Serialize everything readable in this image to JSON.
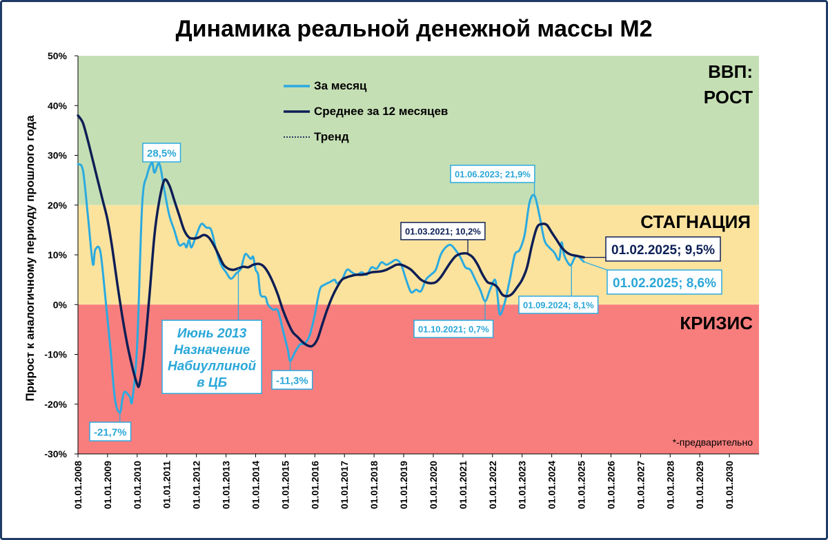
{
  "colors": {
    "zone_growth": "#c5dfb4",
    "zone_stagnation": "#fbe39e",
    "zone_crisis": "#f87e7e",
    "monthly": "#2aaae0",
    "avg12": "#0e1e55",
    "trend": "#0e1e55"
  },
  "chart_data": {
    "type": "line",
    "title": "Динамика реальной денежной массы М2",
    "ylabel": "Прирост к аналогичному периоду прошлого года",
    "ylim": [
      -30,
      50
    ],
    "xlim": [
      "2008-01-01",
      "2030-12-31"
    ],
    "yticks": [
      {
        "value": 50,
        "label": "50%"
      },
      {
        "value": 40,
        "label": "40%"
      },
      {
        "value": 30,
        "label": "30%"
      },
      {
        "value": 20,
        "label": "20%"
      },
      {
        "value": 10,
        "label": "10%"
      },
      {
        "value": 0,
        "label": "0%"
      },
      {
        "value": -10,
        "label": "-10%"
      },
      {
        "value": -20,
        "label": "-20%"
      },
      {
        "value": -30,
        "label": "-30%"
      }
    ],
    "xticks": [
      "01.01.2008",
      "01.01.2009",
      "01.01.2010",
      "01.01.2011",
      "01.01.2012",
      "01.01.2013",
      "01.01.2014",
      "01.01.2015",
      "01.01.2016",
      "01.01.2017",
      "01.01.2018",
      "01.01.2019",
      "01.01.2020",
      "01.01.2021",
      "01.01.2022",
      "01.01.2023",
      "01.01.2024",
      "01.01.2025",
      "01.01.2026",
      "01.01.2027",
      "01.01.2028",
      "01.01.2029",
      "01.01.2030"
    ],
    "zones": [
      {
        "label_lines": [
          "ВВП:",
          "РОСТ"
        ],
        "from": 20,
        "to": 50
      },
      {
        "label_lines": [
          "СТАГНАЦИЯ"
        ],
        "from": 0,
        "to": 20
      },
      {
        "label_lines": [
          "КРИЗИС"
        ],
        "from": -30,
        "to": 0
      }
    ],
    "legend": {
      "position": "top-center",
      "entries": [
        "За месяц",
        "Среднее за 12 месяцев",
        "Тренд"
      ]
    },
    "series": [
      {
        "name": "За месяц",
        "points": [
          [
            "2008-01",
            28.2
          ],
          [
            "2008-03",
            27
          ],
          [
            "2008-05",
            18
          ],
          [
            "2008-07",
            8.2
          ],
          [
            "2008-08",
            11
          ],
          [
            "2008-10",
            10.8
          ],
          [
            "2008-12",
            2
          ],
          [
            "2009-02",
            -8
          ],
          [
            "2009-04",
            -19
          ],
          [
            "2009-06",
            -21.7
          ],
          [
            "2009-07",
            -19
          ],
          [
            "2009-08",
            -17.5
          ],
          [
            "2009-10",
            -18.5
          ],
          [
            "2009-11",
            -19.2
          ],
          [
            "2010-01",
            -8
          ],
          [
            "2010-03",
            20
          ],
          [
            "2010-05",
            26
          ],
          [
            "2010-07",
            28.5
          ],
          [
            "2010-08",
            26.5
          ],
          [
            "2010-10",
            28.3
          ],
          [
            "2010-12",
            23
          ],
          [
            "2011-02",
            18
          ],
          [
            "2011-04",
            15
          ],
          [
            "2011-06",
            12
          ],
          [
            "2011-08",
            12.3
          ],
          [
            "2011-09",
            11.5
          ],
          [
            "2011-10",
            13
          ],
          [
            "2011-11",
            11.5
          ],
          [
            "2012-01",
            14
          ],
          [
            "2012-03",
            16.2
          ],
          [
            "2012-05",
            15.5
          ],
          [
            "2012-07",
            15
          ],
          [
            "2012-09",
            11
          ],
          [
            "2012-11",
            8
          ],
          [
            "2013-01",
            6.5
          ],
          [
            "2013-03",
            5.2
          ],
          [
            "2013-05",
            6.2
          ],
          [
            "2013-07",
            7.2
          ],
          [
            "2013-08",
            9
          ],
          [
            "2013-09",
            10.2
          ],
          [
            "2013-11",
            9.2
          ],
          [
            "2013-12",
            9.6
          ],
          [
            "2014-01",
            7
          ],
          [
            "2014-02",
            6
          ],
          [
            "2014-03",
            2
          ],
          [
            "2014-05",
            1.5
          ],
          [
            "2014-06",
            0
          ],
          [
            "2014-08",
            -1
          ],
          [
            "2014-10",
            -1.2
          ],
          [
            "2014-12",
            -5
          ],
          [
            "2015-02",
            -9
          ],
          [
            "2015-03",
            -11.3
          ],
          [
            "2015-05",
            -9.5
          ],
          [
            "2015-07",
            -8
          ],
          [
            "2015-09",
            -7.8
          ],
          [
            "2015-11",
            -6
          ],
          [
            "2016-01",
            -2
          ],
          [
            "2016-03",
            3
          ],
          [
            "2016-05",
            4
          ],
          [
            "2016-07",
            4.5
          ],
          [
            "2016-09",
            5
          ],
          [
            "2016-10",
            4.3
          ],
          [
            "2016-12",
            5
          ],
          [
            "2017-02",
            7
          ],
          [
            "2017-04",
            6.5
          ],
          [
            "2017-06",
            6
          ],
          [
            "2017-08",
            6.5
          ],
          [
            "2017-10",
            6
          ],
          [
            "2017-12",
            7.5
          ],
          [
            "2018-02",
            7.2
          ],
          [
            "2018-04",
            8.5
          ],
          [
            "2018-06",
            8
          ],
          [
            "2018-08",
            8.5
          ],
          [
            "2018-10",
            9
          ],
          [
            "2018-12",
            8
          ],
          [
            "2019-02",
            5
          ],
          [
            "2019-04",
            2.5
          ],
          [
            "2019-06",
            3
          ],
          [
            "2019-08",
            2.7
          ],
          [
            "2019-10",
            5
          ],
          [
            "2019-12",
            6
          ],
          [
            "2020-02",
            7
          ],
          [
            "2020-04",
            10
          ],
          [
            "2020-06",
            11.5
          ],
          [
            "2020-08",
            12
          ],
          [
            "2020-10",
            11
          ],
          [
            "2020-12",
            9.5
          ],
          [
            "2021-02",
            7.5
          ],
          [
            "2021-04",
            7
          ],
          [
            "2021-06",
            5
          ],
          [
            "2021-08",
            3
          ],
          [
            "2021-10",
            0.7
          ],
          [
            "2021-12",
            3
          ],
          [
            "2022-02",
            5
          ],
          [
            "2022-03",
            2
          ],
          [
            "2022-04",
            -2
          ],
          [
            "2022-06",
            0.5
          ],
          [
            "2022-08",
            5
          ],
          [
            "2022-10",
            10
          ],
          [
            "2022-12",
            11
          ],
          [
            "2023-02",
            14
          ],
          [
            "2023-04",
            20.5
          ],
          [
            "2023-06",
            21.9
          ],
          [
            "2023-08",
            18
          ],
          [
            "2023-10",
            13
          ],
          [
            "2023-12",
            11.5
          ],
          [
            "2024-02",
            10.5
          ],
          [
            "2024-04",
            9
          ],
          [
            "2024-05",
            12.5
          ],
          [
            "2024-06",
            10
          ],
          [
            "2024-08",
            8.1
          ],
          [
            "2024-09",
            8.1
          ],
          [
            "2024-11",
            9.8
          ],
          [
            "2025-02",
            8.6
          ]
        ]
      },
      {
        "name": "Среднее за 12 месяцев",
        "points": [
          [
            "2008-01",
            38
          ],
          [
            "2008-03",
            36.5
          ],
          [
            "2008-05",
            33
          ],
          [
            "2008-07",
            29
          ],
          [
            "2008-09",
            25
          ],
          [
            "2008-11",
            21
          ],
          [
            "2009-01",
            17
          ],
          [
            "2009-03",
            11
          ],
          [
            "2009-05",
            4
          ],
          [
            "2009-07",
            -2.5
          ],
          [
            "2009-09",
            -8
          ],
          [
            "2009-11",
            -12.5
          ],
          [
            "2010-01",
            -16
          ],
          [
            "2010-02",
            -15.8
          ],
          [
            "2010-04",
            -9
          ],
          [
            "2010-06",
            2
          ],
          [
            "2010-08",
            14
          ],
          [
            "2010-10",
            21
          ],
          [
            "2010-12",
            25
          ],
          [
            "2011-02",
            24
          ],
          [
            "2011-04",
            21
          ],
          [
            "2011-06",
            18
          ],
          [
            "2011-08",
            15
          ],
          [
            "2011-10",
            13.5
          ],
          [
            "2011-12",
            13.3
          ],
          [
            "2012-02",
            13.5
          ],
          [
            "2012-04",
            14
          ],
          [
            "2012-06",
            13.5
          ],
          [
            "2012-08",
            12
          ],
          [
            "2012-10",
            10
          ],
          [
            "2012-12",
            8
          ],
          [
            "2013-02",
            7.2
          ],
          [
            "2013-04",
            7
          ],
          [
            "2013-06",
            7.3
          ],
          [
            "2013-08",
            7.6
          ],
          [
            "2013-10",
            7.5
          ],
          [
            "2013-12",
            8
          ],
          [
            "2014-02",
            8.2
          ],
          [
            "2014-04",
            7.8
          ],
          [
            "2014-06",
            6.5
          ],
          [
            "2014-08",
            4.5
          ],
          [
            "2014-10",
            2
          ],
          [
            "2014-12",
            -1
          ],
          [
            "2015-02",
            -3.5
          ],
          [
            "2015-04",
            -5.5
          ],
          [
            "2015-06",
            -6.5
          ],
          [
            "2015-08",
            -7.5
          ],
          [
            "2015-10",
            -8.2
          ],
          [
            "2015-12",
            -8.3
          ],
          [
            "2016-02",
            -7
          ],
          [
            "2016-04",
            -4
          ],
          [
            "2016-06",
            -1
          ],
          [
            "2016-08",
            1.5
          ],
          [
            "2016-10",
            3.5
          ],
          [
            "2016-12",
            5
          ],
          [
            "2017-02",
            5.5
          ],
          [
            "2017-04",
            5.8
          ],
          [
            "2017-06",
            6
          ],
          [
            "2017-08",
            6
          ],
          [
            "2017-10",
            6.2
          ],
          [
            "2017-12",
            6.5
          ],
          [
            "2018-02",
            6.6
          ],
          [
            "2018-04",
            6.7
          ],
          [
            "2018-06",
            7
          ],
          [
            "2018-08",
            7.5
          ],
          [
            "2018-10",
            8
          ],
          [
            "2018-12",
            8
          ],
          [
            "2019-02",
            7.6
          ],
          [
            "2019-04",
            7
          ],
          [
            "2019-06",
            6
          ],
          [
            "2019-08",
            5
          ],
          [
            "2019-10",
            4.5
          ],
          [
            "2019-12",
            4.3
          ],
          [
            "2020-02",
            4.5
          ],
          [
            "2020-04",
            5.5
          ],
          [
            "2020-06",
            7
          ],
          [
            "2020-08",
            8.5
          ],
          [
            "2020-10",
            9.7
          ],
          [
            "2020-12",
            10.2
          ],
          [
            "2021-02",
            10.3
          ],
          [
            "2021-03",
            10.2
          ],
          [
            "2021-05",
            9.5
          ],
          [
            "2021-07",
            8
          ],
          [
            "2021-09",
            6
          ],
          [
            "2021-11",
            4.5
          ],
          [
            "2022-01",
            4.2
          ],
          [
            "2022-03",
            3.5
          ],
          [
            "2022-05",
            2
          ],
          [
            "2022-07",
            1.7
          ],
          [
            "2022-09",
            2.2
          ],
          [
            "2022-11",
            3.5
          ],
          [
            "2023-01",
            5
          ],
          [
            "2023-03",
            7.5
          ],
          [
            "2023-05",
            12
          ],
          [
            "2023-07",
            15.5
          ],
          [
            "2023-09",
            16.2
          ],
          [
            "2023-11",
            16
          ],
          [
            "2024-01",
            14.5
          ],
          [
            "2024-03",
            13
          ],
          [
            "2024-05",
            11.5
          ],
          [
            "2024-07",
            10.5
          ],
          [
            "2024-09",
            10
          ],
          [
            "2024-11",
            9.8
          ],
          [
            "2025-02",
            9.5
          ]
        ]
      }
    ],
    "annotations": [
      {
        "text": "28,5%",
        "x": "2010-07",
        "y": 28.5,
        "style": "light"
      },
      {
        "text": "-21,7%",
        "x": "2009-06",
        "y": -21.7,
        "style": "light"
      },
      {
        "text": "-11,3%",
        "x": "2015-03",
        "y": -11.3,
        "style": "light"
      },
      {
        "text": "01.06.2023; 21,9%",
        "x": "2023-06",
        "y": 21.9,
        "style": "light"
      },
      {
        "text": "01.03.2021; 10,2%",
        "x": "2021-03",
        "y": 10.2,
        "style": "dark"
      },
      {
        "text": "01.10.2021; 0,7%",
        "x": "2021-10",
        "y": 0.7,
        "style": "light"
      },
      {
        "text": "01.09.2024; 8,1%",
        "x": "2024-09",
        "y": 8.1,
        "style": "light"
      },
      {
        "text": "01.02.2025; 9,5%",
        "x": "2025-02",
        "y": 9.5,
        "style": "dark"
      },
      {
        "text": "01.02.2025; 8,6%",
        "x": "2025-02",
        "y": 8.6,
        "style": "light"
      },
      {
        "text_lines": [
          "Июнь 2013",
          "Назначение",
          "Набиуллиной",
          "в ЦБ"
        ],
        "x": "2013-06",
        "y": 7.3,
        "style": "italic"
      }
    ],
    "footnote": "*-предварительно"
  }
}
